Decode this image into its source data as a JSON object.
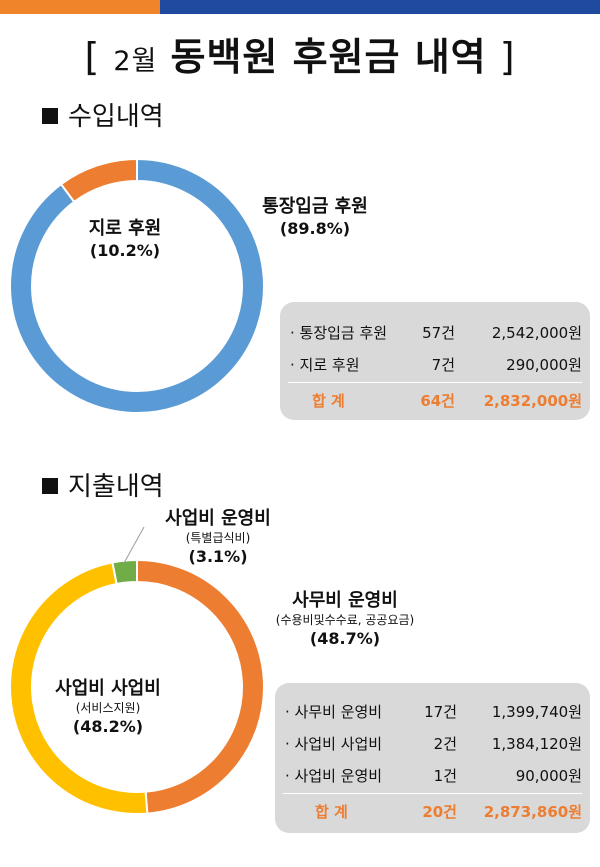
{
  "page": {
    "title_open": "[",
    "title_month": "2월",
    "title_main": "동백원 후원금 내역",
    "title_close": "]"
  },
  "income": {
    "heading": "수입내역",
    "table": {
      "rows": [
        {
          "name": "· 통장입금 후원",
          "count": "57건",
          "amount": "2,542,000원"
        },
        {
          "name": "· 지로 후원",
          "count": "7건",
          "amount": "290,000원"
        }
      ],
      "total": {
        "name": "합    계",
        "count": "64건",
        "amount": "2,832,000원"
      }
    }
  },
  "expense": {
    "heading": "지출내역",
    "table": {
      "rows": [
        {
          "name": "· 사무비 운영비",
          "count": "17건",
          "amount": "1,399,740원"
        },
        {
          "name": "· 사업비 사업비",
          "count": "2건",
          "amount": "1,384,120원"
        },
        {
          "name": "· 사업비 운영비",
          "count": "1건",
          "amount": "90,000원"
        }
      ],
      "total": {
        "name": "합    계",
        "count": "20건",
        "amount": "2,873,860원"
      }
    }
  },
  "colors": {
    "blue": "#5b9bd5",
    "orange": "#ed7d31",
    "yellow": "#ffc000",
    "green": "#70ad47",
    "topbar_orange": "#f0842b",
    "topbar_blue": "#1f4aa0",
    "total_text": "#ed7d31"
  },
  "chart_data": [
    {
      "type": "pie",
      "variant": "donut",
      "slices": [
        {
          "name": "통장입금 후원",
          "value": 89.8,
          "label": "(89.8%)",
          "color": "#5b9bd5"
        },
        {
          "name": "지로 후원",
          "value": 10.2,
          "label": "(10.2%)",
          "color": "#ed7d31"
        }
      ]
    },
    {
      "type": "pie",
      "variant": "donut",
      "slices": [
        {
          "name": "사무비 운영비",
          "sublabel": "(수용비및수수료, 공공요금)",
          "value": 48.7,
          "label": "(48.7%)",
          "color": "#ed7d31"
        },
        {
          "name": "사업비 사업비",
          "sublabel": "(서비스지원)",
          "value": 48.2,
          "label": "(48.2%)",
          "color": "#ffc000"
        },
        {
          "name": "사업비 운영비",
          "sublabel": "(특별급식비)",
          "value": 3.1,
          "label": "(3.1%)",
          "color": "#70ad47"
        }
      ]
    }
  ]
}
